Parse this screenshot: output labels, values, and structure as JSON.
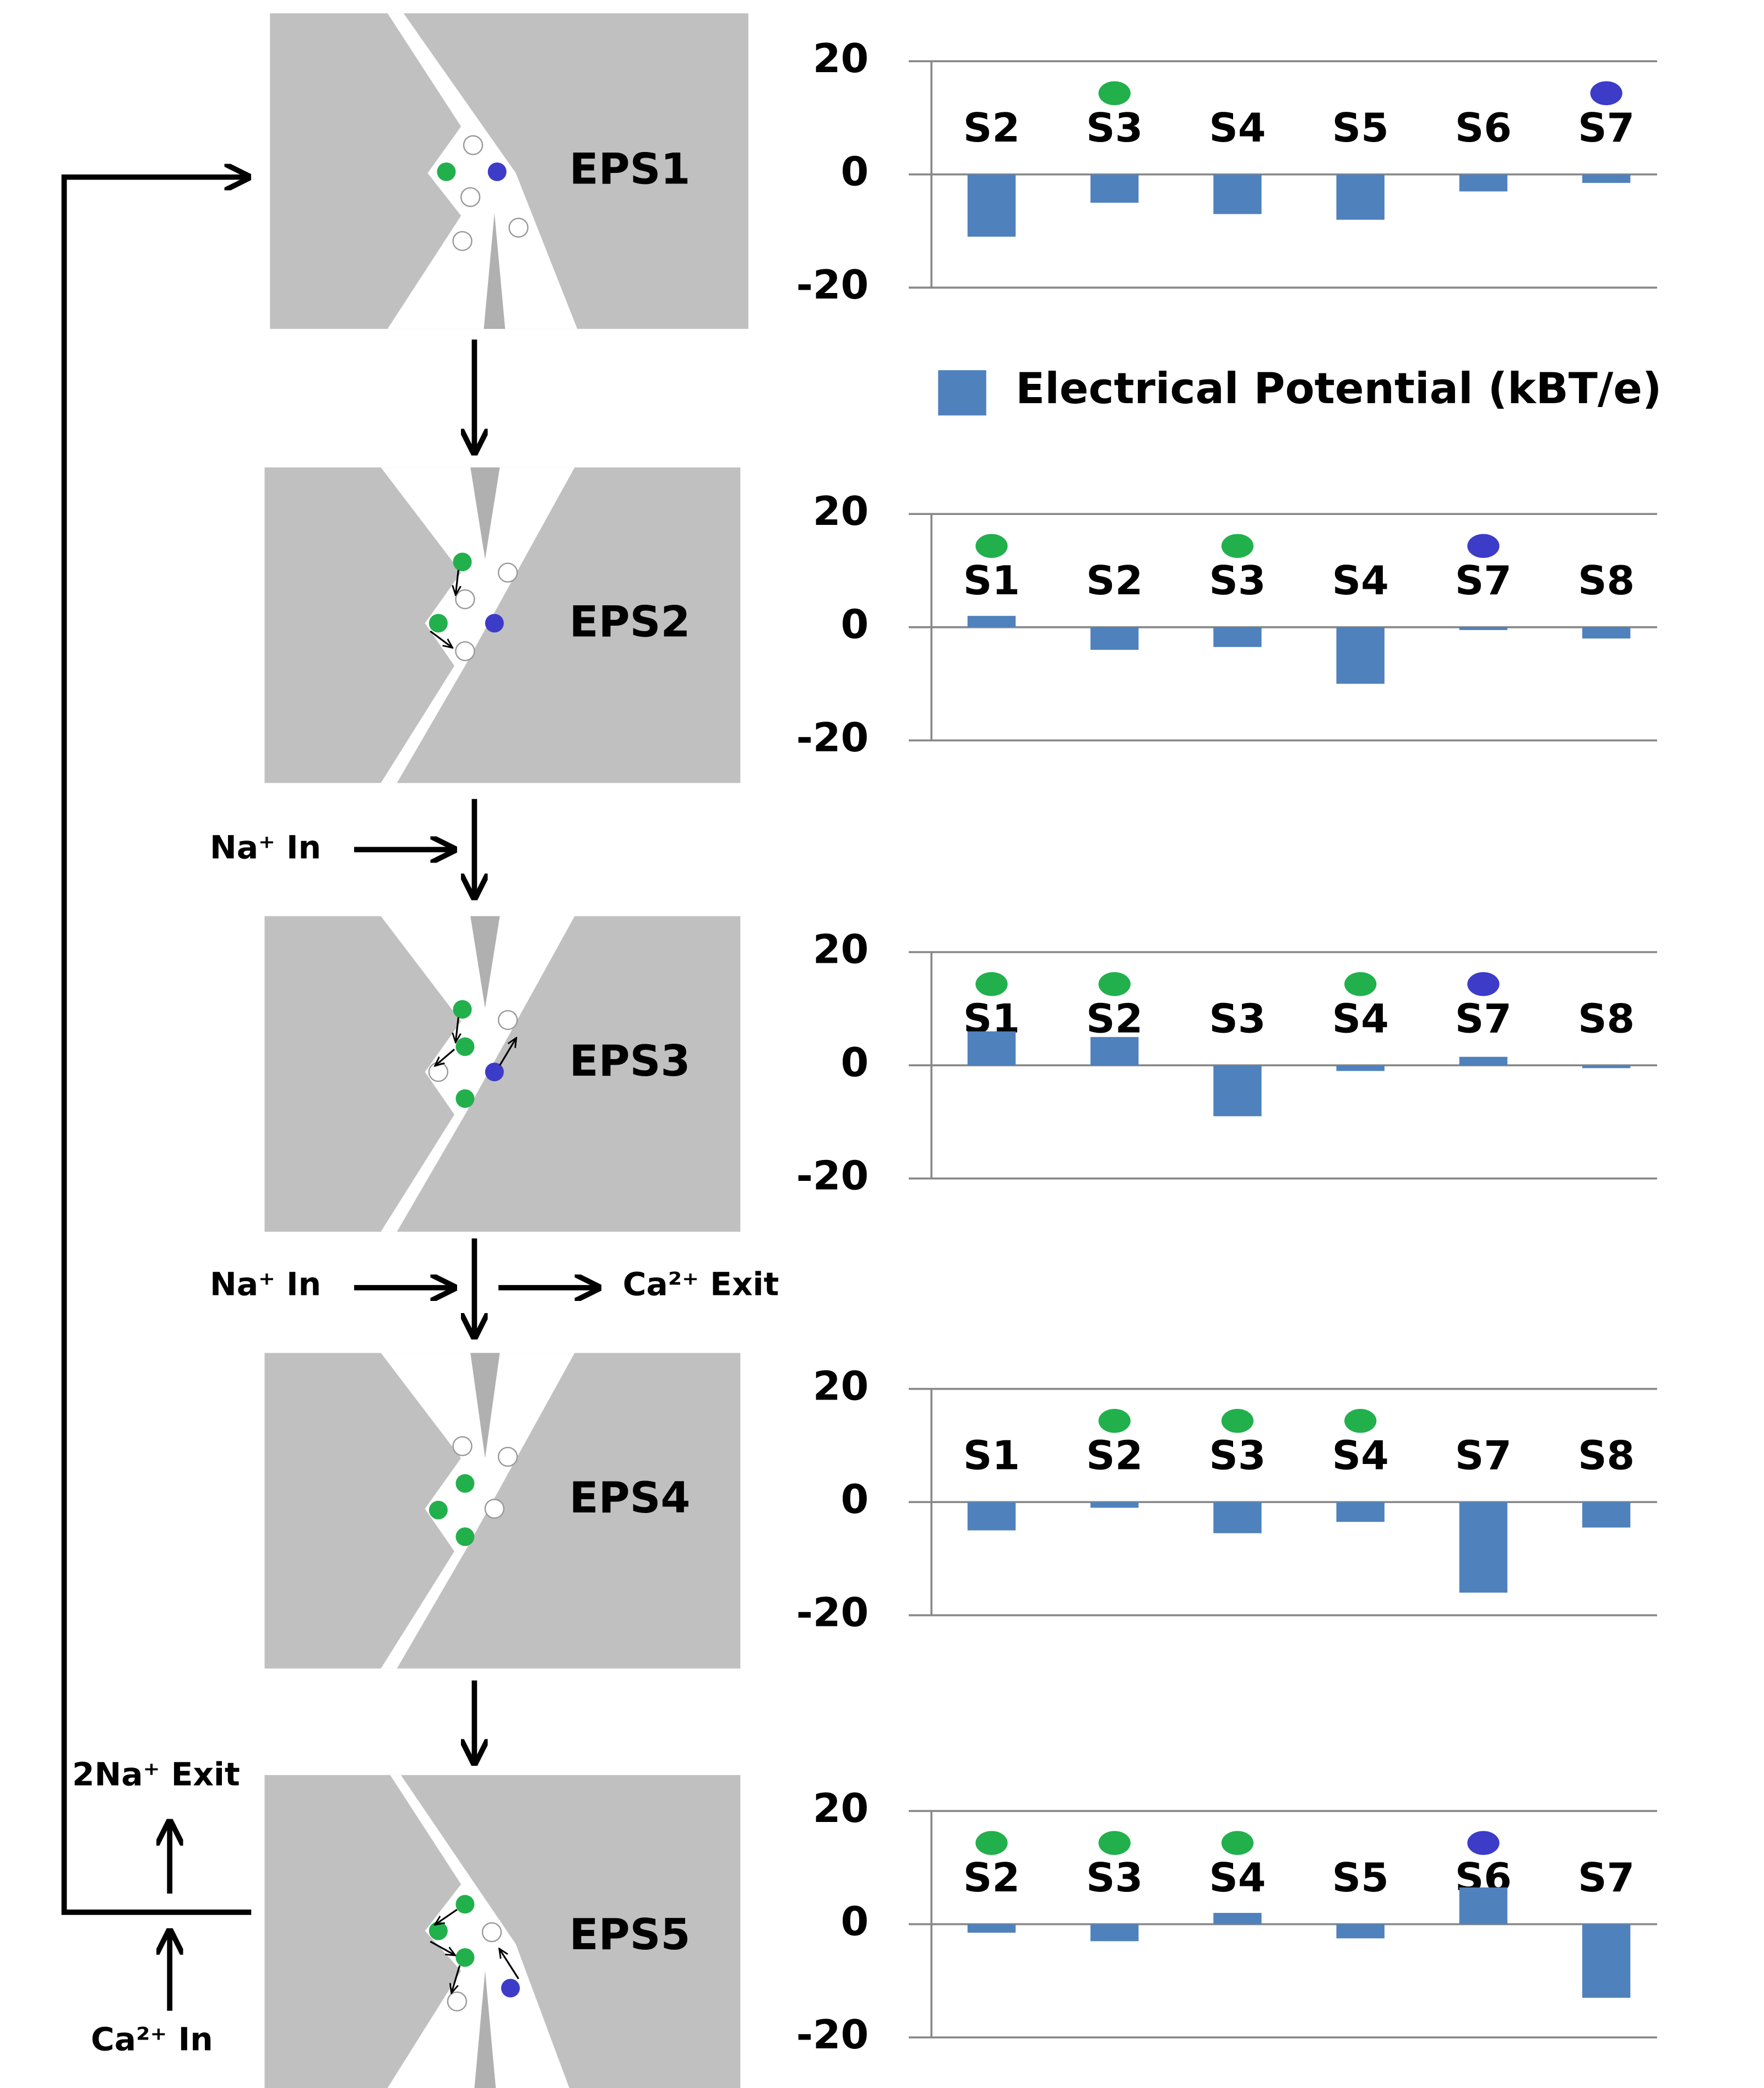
{
  "chart_data": [
    {
      "type": "bar",
      "categories": [
        "S2",
        "S3",
        "S4",
        "S5",
        "S6",
        "S7"
      ],
      "series": [
        {
          "name": "Electrical Potential (kBT/e)",
          "color": "#4f81bd",
          "values": [
            -11,
            -5,
            -7,
            -8,
            -3,
            -1.5
          ]
        }
      ],
      "markers": [
        null,
        "#22b04c",
        null,
        null,
        null,
        "#3c3cc8"
      ],
      "ylim": [
        -20,
        20
      ],
      "yticks": [
        -20,
        0,
        20
      ],
      "grid": true
    },
    {
      "type": "bar",
      "categories": [
        "S1",
        "S2",
        "S3",
        "S4",
        "S7",
        "S8"
      ],
      "series": [
        {
          "color": "#4f81bd",
          "values": [
            2,
            -4,
            -3.5,
            -10,
            -0.5,
            -2
          ]
        }
      ],
      "markers": [
        "#22b04c",
        null,
        "#22b04c",
        null,
        "#3c3cc8",
        null
      ],
      "ylim": [
        -20,
        20
      ],
      "yticks": [
        -20,
        0,
        20
      ],
      "grid": true
    },
    {
      "type": "bar",
      "categories": [
        "S1",
        "S2",
        "S3",
        "S4",
        "S7",
        "S8"
      ],
      "series": [
        {
          "color": "#4f81bd",
          "values": [
            6,
            5,
            -9,
            -1,
            1.5,
            -0.5
          ]
        }
      ],
      "markers": [
        "#22b04c",
        "#22b04c",
        null,
        "#22b04c",
        "#3c3cc8",
        null
      ],
      "ylim": [
        -20,
        20
      ],
      "yticks": [
        -20,
        0,
        20
      ],
      "grid": true
    },
    {
      "type": "bar",
      "categories": [
        "S1",
        "S2",
        "S3",
        "S4",
        "S7",
        "S8"
      ],
      "series": [
        {
          "color": "#4f81bd",
          "values": [
            -5,
            -1,
            -5.5,
            -3.5,
            -16,
            -4.5
          ]
        }
      ],
      "markers": [
        null,
        "#22b04c",
        "#22b04c",
        "#22b04c",
        null,
        null
      ],
      "ylim": [
        -20,
        20
      ],
      "yticks": [
        -20,
        0,
        20
      ],
      "grid": true
    },
    {
      "type": "bar",
      "categories": [
        "S2",
        "S3",
        "S4",
        "S5",
        "S6",
        "S7"
      ],
      "series": [
        {
          "color": "#4f81bd",
          "values": [
            -1.5,
            -3,
            2,
            -2.5,
            6.5,
            -13
          ]
        }
      ],
      "markers": [
        "#22b04c",
        "#22b04c",
        "#22b04c",
        null,
        "#3c3cc8",
        null
      ],
      "ylim": [
        -20,
        20
      ],
      "yticks": [
        -20,
        0,
        20
      ],
      "grid": true
    }
  ],
  "diagram": {
    "states": [
      "EPS1",
      "EPS2",
      "EPS3",
      "EPS4",
      "EPS5"
    ],
    "labels": [
      "Na⁺ In",
      "Na⁺ In",
      "Ca²⁺ Exit",
      "2Na⁺ Exit",
      "Ca²⁺ In"
    ]
  }
}
